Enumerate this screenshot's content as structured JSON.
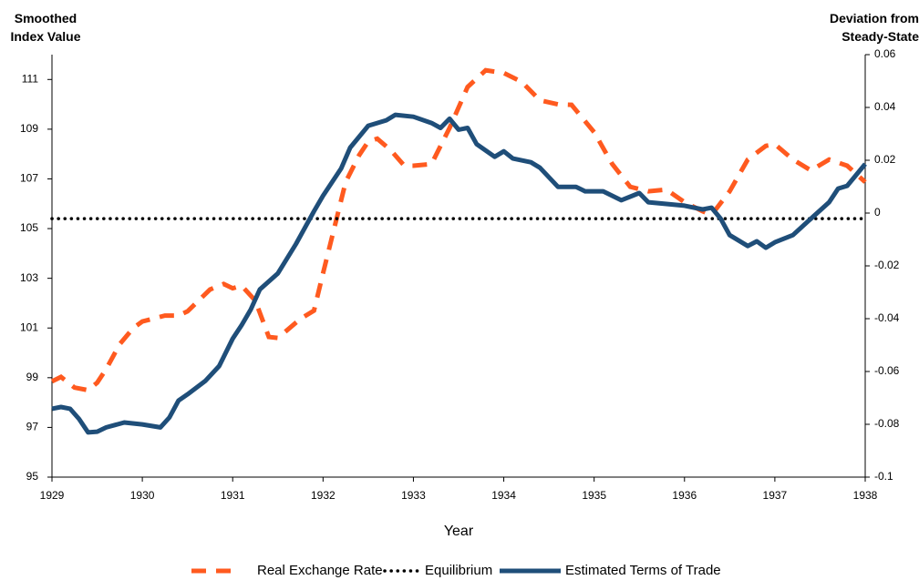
{
  "chart_data": {
    "type": "line",
    "x_label": "Year",
    "y_label": "Smoothed Index Value",
    "y2_label": "Deviation from Steady-State",
    "xlim": [
      1929,
      1938
    ],
    "xticks": [
      1929,
      1930,
      1931,
      1932,
      1933,
      1934,
      1935,
      1936,
      1937,
      1938
    ],
    "ylim": [
      95,
      112
    ],
    "yticks": [
      95,
      97,
      99,
      101,
      103,
      105,
      107,
      109,
      111
    ],
    "y2lim": [
      -0.1,
      0.06
    ],
    "y2ticks": [
      -0.1,
      -0.08,
      -0.06,
      -0.04,
      -0.02,
      0,
      0.02,
      0.04,
      0.06
    ],
    "legend": "bottom",
    "series": [
      {
        "name": "Real Exchange Rate",
        "color": "#ff5a1f",
        "style": "dash",
        "x": [
          1929.0,
          1929.1,
          1929.25,
          1929.4,
          1929.5,
          1929.6,
          1929.75,
          1929.9,
          1930.0,
          1930.25,
          1930.4,
          1930.5,
          1930.75,
          1930.9,
          1931.0,
          1931.1,
          1931.25,
          1931.4,
          1931.5,
          1931.75,
          1931.9,
          1932.0,
          1932.15,
          1932.25,
          1932.4,
          1932.5,
          1932.6,
          1932.75,
          1932.9,
          1933.0,
          1933.2,
          1933.4,
          1933.6,
          1933.8,
          1934.0,
          1934.2,
          1934.4,
          1934.6,
          1934.75,
          1935.0,
          1935.2,
          1935.4,
          1935.6,
          1935.8,
          1936.0,
          1936.2,
          1936.3,
          1936.5,
          1936.7,
          1936.9,
          1937.0,
          1937.2,
          1937.4,
          1937.6,
          1937.8,
          1938.0
        ],
        "values": [
          98.85,
          99.03,
          98.6,
          98.5,
          98.8,
          99.35,
          100.35,
          101.0,
          101.26,
          101.5,
          101.5,
          101.67,
          102.55,
          102.77,
          102.6,
          102.7,
          102.1,
          100.64,
          100.6,
          101.37,
          101.7,
          103.2,
          105.4,
          106.87,
          107.96,
          108.5,
          108.62,
          108.15,
          107.53,
          107.53,
          107.6,
          109.05,
          110.7,
          111.37,
          111.26,
          110.9,
          110.16,
          110.0,
          109.98,
          108.88,
          107.6,
          106.68,
          106.5,
          106.57,
          106.06,
          105.7,
          105.55,
          106.5,
          107.78,
          108.33,
          108.4,
          107.78,
          107.34,
          107.78,
          107.53,
          106.87
        ]
      },
      {
        "name": "Equilibrium",
        "color": "#000000",
        "style": "dot",
        "x": [
          1929,
          1938
        ],
        "values": [
          105.4,
          105.4
        ]
      },
      {
        "name": "Estimated Terms of Trade",
        "color": "#1f4e79",
        "style": "solid",
        "x": [
          1929.0,
          1929.1,
          1929.2,
          1929.3,
          1929.4,
          1929.5,
          1929.6,
          1929.8,
          1930.0,
          1930.2,
          1930.3,
          1930.4,
          1930.5,
          1930.7,
          1930.85,
          1931.0,
          1931.1,
          1931.2,
          1931.3,
          1931.5,
          1931.7,
          1931.9,
          1932.0,
          1932.2,
          1932.3,
          1932.4,
          1932.5,
          1932.6,
          1932.7,
          1932.8,
          1933.0,
          1933.2,
          1933.3,
          1933.4,
          1933.5,
          1933.6,
          1933.7,
          1933.9,
          1934.0,
          1934.1,
          1934.3,
          1934.4,
          1934.6,
          1934.8,
          1934.9,
          1935.1,
          1935.3,
          1935.5,
          1935.6,
          1935.8,
          1936.0,
          1936.2,
          1936.3,
          1936.4,
          1936.5,
          1936.7,
          1936.8,
          1936.9,
          1937.0,
          1937.2,
          1937.4,
          1937.6,
          1937.7,
          1937.8,
          1937.9,
          1938.0
        ],
        "values": [
          97.75,
          97.82,
          97.75,
          97.34,
          96.8,
          96.83,
          97.0,
          97.2,
          97.12,
          97.0,
          97.4,
          98.08,
          98.33,
          98.88,
          99.47,
          100.57,
          101.12,
          101.74,
          102.55,
          103.2,
          104.38,
          105.7,
          106.32,
          107.42,
          108.26,
          108.7,
          109.14,
          109.25,
          109.36,
          109.58,
          109.5,
          109.25,
          109.05,
          109.42,
          108.98,
          109.05,
          108.4,
          107.89,
          108.11,
          107.82,
          107.67,
          107.45,
          106.68,
          106.68,
          106.5,
          106.5,
          106.14,
          106.43,
          106.06,
          105.99,
          105.92,
          105.77,
          105.84,
          105.4,
          104.74,
          104.3,
          104.49,
          104.23,
          104.45,
          104.74,
          105.4,
          106.06,
          106.61,
          106.72,
          107.16,
          107.6
        ]
      }
    ]
  }
}
